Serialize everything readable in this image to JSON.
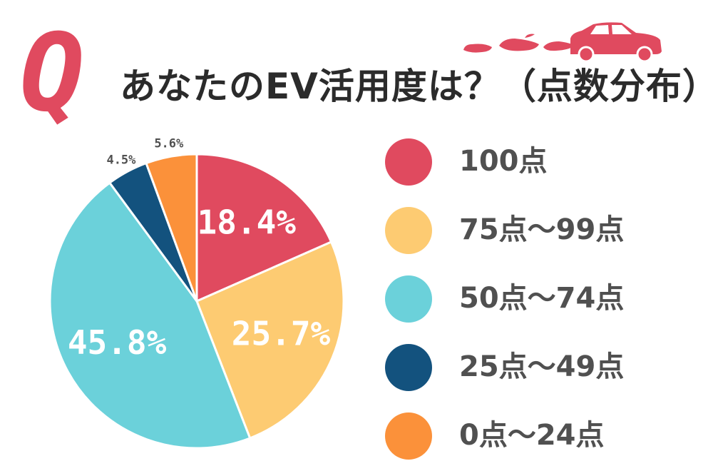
{
  "title": {
    "badge": "Q",
    "text": "あなたのEV活用度は？（点数分布）"
  },
  "colors": {
    "accent": "#e04a5f",
    "text": "#2b2b2b",
    "legend_text": "#505050",
    "slice_edge": "#ffffff"
  },
  "chart_data": {
    "type": "pie",
    "categories": [
      "100点",
      "75点〜99点",
      "50点〜74点",
      "25点〜49点",
      "0点〜24点"
    ],
    "values": [
      18.4,
      25.7,
      45.8,
      4.5,
      5.6
    ],
    "labels": [
      "18.4%",
      "25.7%",
      "45.8%",
      "4.5%",
      "5.6%"
    ],
    "colors": [
      "#e04a5f",
      "#fdcb72",
      "#6bd1da",
      "#13527e",
      "#fb913a"
    ],
    "label_placement": [
      "inside",
      "inside",
      "inside",
      "outside",
      "outside"
    ],
    "start": "top",
    "direction": "clockwise",
    "legend_placement": "right"
  }
}
